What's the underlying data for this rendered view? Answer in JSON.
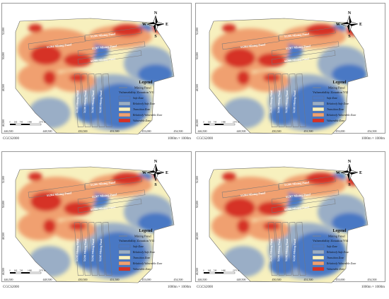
{
  "panels": [
    {
      "zonation": "Vulnerability Zonation VI1",
      "variant": 0
    },
    {
      "zonation": "Vulnerability Zonation VI2",
      "variant": 1
    },
    {
      "zonation": "Vulnerability Zonation VI3",
      "variant": 2
    },
    {
      "zonation": "Vulnerability Zonation VI4",
      "variant": 3
    }
  ],
  "common": {
    "legend_title": "Legend",
    "mining_panel_label": "Mining Panel",
    "zones": [
      {
        "label": "Safe Zone",
        "color": "#4a78c4"
      },
      {
        "label": "Relatively Safe Zone",
        "color": "#9aaec6"
      },
      {
        "label": "Transition Zone",
        "color": "#f7f0be"
      },
      {
        "label": "Relatively Vulnerable Zone",
        "color": "#f0a070"
      },
      {
        "label": "Vulnerable Zone",
        "color": "#d63026"
      }
    ],
    "x_ticks": [
      "446,500",
      "448,500",
      "450,500",
      "451,500",
      "453,000",
      "454,500"
    ],
    "y_ticks": [
      "52,000",
      "50,000",
      "48,500",
      "46,500"
    ],
    "panel_labels": [
      "51204 Mining Panel",
      "51206 Mining Panel",
      "51207 Mining Panel",
      "51208 Mining Panel"
    ],
    "vertical_panel_labels": [
      "51203 Mining Panel",
      "51201 Mining Panel",
      "51202 Mining Panel",
      "51205 Mining Panel"
    ],
    "scale_ticks": [
      "0",
      "260",
      "740",
      "1480",
      "2370"
    ],
    "scale_unit": "m",
    "crs": "CGCS2000",
    "grid_note": "1000m × 1000m",
    "compass": {
      "n": "N",
      "s": "S",
      "e": "E",
      "w": "W"
    }
  }
}
